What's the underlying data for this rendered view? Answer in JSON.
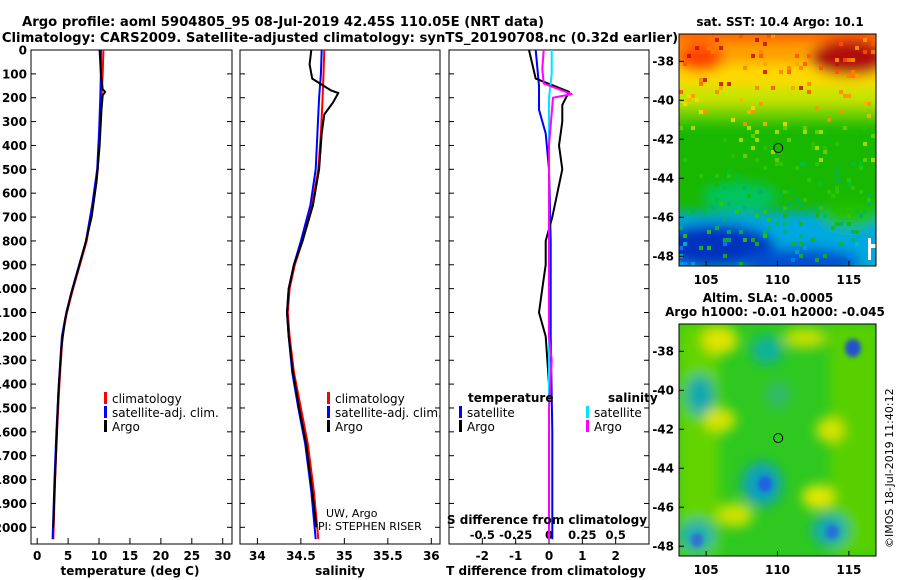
{
  "header": {
    "line1": "Argo profile: aoml 5904805_95 08-Jul-2019 42.45S 110.05E (NRT data)",
    "line2": "Climatology: CARS2009. Satellite-adjusted climatology: synTS_20190708.nc (0.32d earlier)"
  },
  "colors": {
    "climatology": "#ff0000",
    "satellite": "#0000ff",
    "argo": "#000000",
    "sat_salinity": "#00e5ff",
    "argo_salinity": "#ff00ff"
  },
  "depth_axis": {
    "ticks": [
      0,
      100,
      200,
      300,
      400,
      500,
      600,
      700,
      800,
      900,
      1000,
      1100,
      1200,
      1300,
      1400,
      1500,
      1600,
      1700,
      1800,
      1900,
      2000
    ],
    "range": [
      0,
      2070
    ]
  },
  "chart_data": [
    {
      "id": "temperature",
      "type": "line",
      "xlabel": "temperature (deg C)",
      "x_ticks": [
        0,
        5,
        10,
        15,
        20,
        25,
        30
      ],
      "xlim": [
        -1,
        31.5
      ],
      "legend": [
        "climatology",
        "satellite-adj. clim.",
        "Argo"
      ],
      "series": [
        {
          "name": "climatology",
          "color": "#ff0000",
          "points": [
            [
              10.7,
              0
            ],
            [
              10.6,
              100
            ],
            [
              10.4,
              200
            ],
            [
              10.1,
              350
            ],
            [
              9.8,
              500
            ],
            [
              9.0,
              650
            ],
            [
              8.0,
              800
            ],
            [
              6.9,
              900
            ],
            [
              5.8,
              1000
            ],
            [
              4.8,
              1100
            ],
            [
              4.1,
              1200
            ],
            [
              3.6,
              1400
            ],
            [
              3.2,
              1600
            ],
            [
              2.9,
              1800
            ],
            [
              2.6,
              2050
            ]
          ]
        },
        {
          "name": "satellite-adj. clim.",
          "color": "#0000ff",
          "points": [
            [
              10.3,
              0
            ],
            [
              10.3,
              100
            ],
            [
              10.2,
              200
            ],
            [
              10.0,
              350
            ],
            [
              9.7,
              500
            ],
            [
              8.9,
              650
            ],
            [
              7.9,
              800
            ],
            [
              6.8,
              900
            ],
            [
              5.7,
              1000
            ],
            [
              4.7,
              1100
            ],
            [
              4.0,
              1200
            ],
            [
              3.5,
              1400
            ],
            [
              3.1,
              1600
            ],
            [
              2.8,
              1800
            ],
            [
              2.5,
              2050
            ]
          ]
        },
        {
          "name": "Argo",
          "color": "#000000",
          "points": [
            [
              10.1,
              0
            ],
            [
              10.3,
              100
            ],
            [
              10.6,
              165
            ],
            [
              11.0,
              175
            ],
            [
              10.6,
              190
            ],
            [
              10.4,
              250
            ],
            [
              10.1,
              400
            ],
            [
              9.6,
              550
            ],
            [
              8.8,
              700
            ],
            [
              7.7,
              820
            ],
            [
              6.6,
              920
            ],
            [
              5.4,
              1030
            ],
            [
              4.5,
              1130
            ],
            [
              3.9,
              1250
            ],
            [
              3.4,
              1450
            ],
            [
              3.1,
              1650
            ],
            [
              2.8,
              1850
            ],
            [
              2.6,
              2000
            ]
          ]
        }
      ]
    },
    {
      "id": "salinity",
      "type": "line",
      "xlabel": "salinity",
      "x_ticks": [
        34,
        34.5,
        35,
        35.5,
        36
      ],
      "x_tick_labels": [
        "34",
        "34.5",
        "35",
        "35.5",
        "36"
      ],
      "xlim": [
        33.8,
        36.1
      ],
      "legend": [
        "climatology",
        "satellite-adj. clim.",
        "Argo"
      ],
      "credit1": "UW, Argo",
      "credit2": "PI: STEPHEN RISER",
      "series": [
        {
          "name": "climatology",
          "color": "#ff0000",
          "points": [
            [
              34.77,
              0
            ],
            [
              34.76,
              100
            ],
            [
              34.75,
              200
            ],
            [
              34.73,
              350
            ],
            [
              34.7,
              500
            ],
            [
              34.63,
              650
            ],
            [
              34.52,
              800
            ],
            [
              34.43,
              900
            ],
            [
              34.37,
              1000
            ],
            [
              34.35,
              1100
            ],
            [
              34.37,
              1200
            ],
            [
              34.42,
              1350
            ],
            [
              34.5,
              1500
            ],
            [
              34.58,
              1650
            ],
            [
              34.65,
              1850
            ],
            [
              34.7,
              2050
            ]
          ]
        },
        {
          "name": "satellite-adj. clim.",
          "color": "#0000ff",
          "points": [
            [
              34.74,
              0
            ],
            [
              34.73,
              100
            ],
            [
              34.71,
              200
            ],
            [
              34.69,
              350
            ],
            [
              34.67,
              500
            ],
            [
              34.61,
              650
            ],
            [
              34.5,
              800
            ],
            [
              34.42,
              900
            ],
            [
              34.36,
              1000
            ],
            [
              34.34,
              1100
            ],
            [
              34.36,
              1200
            ],
            [
              34.4,
              1350
            ],
            [
              34.47,
              1500
            ],
            [
              34.55,
              1650
            ],
            [
              34.62,
              1850
            ],
            [
              34.67,
              2050
            ]
          ]
        },
        {
          "name": "Argo",
          "color": "#000000",
          "points": [
            [
              34.62,
              0
            ],
            [
              34.6,
              60
            ],
            [
              34.63,
              120
            ],
            [
              34.85,
              170
            ],
            [
              34.93,
              180
            ],
            [
              34.87,
              220
            ],
            [
              34.77,
              270
            ],
            [
              34.74,
              350
            ],
            [
              34.71,
              500
            ],
            [
              34.64,
              650
            ],
            [
              34.52,
              800
            ],
            [
              34.42,
              900
            ],
            [
              34.36,
              1000
            ],
            [
              34.34,
              1100
            ],
            [
              34.36,
              1200
            ],
            [
              34.41,
              1350
            ],
            [
              34.48,
              1500
            ],
            [
              34.56,
              1650
            ],
            [
              34.63,
              1850
            ],
            [
              34.68,
              2000
            ]
          ]
        }
      ]
    },
    {
      "id": "difference",
      "type": "line",
      "xlabel": "T difference from climatology",
      "x_ticks": [
        -2,
        -1,
        0,
        1,
        2
      ],
      "x_tick_labels": [
        "-2",
        "-1",
        "0",
        "1",
        "2"
      ],
      "xlim": [
        -3,
        3
      ],
      "top_label": "S difference from climatology",
      "top_ticks": [
        -0.5,
        -0.25,
        0,
        0.25,
        0.5
      ],
      "top_tick_labels": [
        "-0.5",
        "-0.25",
        "0",
        "0.25",
        "0.5"
      ],
      "legend_left_title": "temperature",
      "legend_right_title": "salinity",
      "legend_left": [
        "satellite",
        "Argo"
      ],
      "legend_right": [
        "satellite",
        "Argo"
      ],
      "series": [
        {
          "name": "T satellite",
          "color": "#0000ff",
          "points": [
            [
              -0.4,
              0
            ],
            [
              -0.3,
              150
            ],
            [
              -0.3,
              250
            ],
            [
              -0.1,
              350
            ],
            [
              0.0,
              500
            ],
            [
              0.05,
              800
            ],
            [
              0.05,
              1200
            ],
            [
              0.1,
              1600
            ],
            [
              0.1,
              2050
            ]
          ]
        },
        {
          "name": "T Argo",
          "color": "#000000",
          "points": [
            [
              -0.6,
              0
            ],
            [
              -0.4,
              120
            ],
            [
              0.6,
              175
            ],
            [
              0.4,
              230
            ],
            [
              0.4,
              300
            ],
            [
              0.3,
              400
            ],
            [
              0.4,
              500
            ],
            [
              0.1,
              700
            ],
            [
              -0.1,
              800
            ],
            [
              -0.1,
              900
            ],
            [
              -0.2,
              1000
            ],
            [
              -0.3,
              1100
            ],
            [
              -0.1,
              1200
            ],
            [
              0.0,
              1400
            ],
            [
              0.0,
              1700
            ],
            [
              0.0,
              2050
            ]
          ]
        },
        {
          "name": "S satellite",
          "color": "#00e5ff",
          "points": [
            [
              0.02,
              0
            ],
            [
              0.02,
              100
            ],
            [
              0.0,
              200
            ],
            [
              0.0,
              400
            ],
            [
              0.0,
              700
            ],
            [
              0.0,
              1000
            ],
            [
              0.0,
              1400
            ],
            [
              0.0,
              2050
            ]
          ]
        },
        {
          "name": "S Argo",
          "color": "#ff00ff",
          "points": [
            [
              -0.04,
              0
            ],
            [
              -0.05,
              80
            ],
            [
              -0.04,
              140
            ],
            [
              0.1,
              170
            ],
            [
              0.17,
              185
            ],
            [
              0.03,
              200
            ],
            [
              0.0,
              400
            ],
            [
              0.0,
              800
            ],
            [
              0.0,
              1200
            ],
            [
              0.02,
              1300
            ],
            [
              0.0,
              1500
            ],
            [
              0.0,
              2050
            ]
          ]
        }
      ]
    },
    {
      "id": "sst_map",
      "type": "heatmap",
      "title": "sat. SST: 10.4 Argo: 10.1",
      "x_ticks": [
        105,
        110,
        115
      ],
      "y_ticks": [
        -38,
        -40,
        -42,
        -44,
        -46,
        -48
      ],
      "xlim": [
        103.1,
        116.9
      ],
      "ylim": [
        -48.5,
        -36.6
      ],
      "marker": {
        "lon": 110.05,
        "lat": -42.45
      }
    },
    {
      "id": "sla_map",
      "type": "heatmap",
      "title1": "Altim. SLA: -0.0005",
      "title2": "Argo h1000: -0.01 h2000: -0.045",
      "x_ticks": [
        105,
        110,
        115
      ],
      "y_ticks": [
        -38,
        -40,
        -42,
        -44,
        -46,
        -48
      ],
      "xlim": [
        103.1,
        116.9
      ],
      "ylim": [
        -48.5,
        -36.6
      ],
      "marker": {
        "lon": 110.05,
        "lat": -42.45
      }
    }
  ],
  "watermark": "©IMOS 18-Jul-2019 11:40:12"
}
